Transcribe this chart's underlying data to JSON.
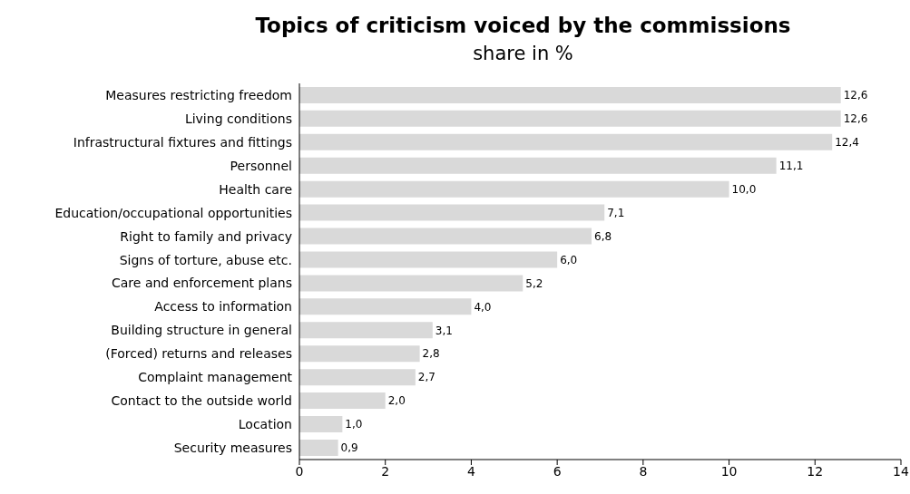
{
  "chart_data": {
    "type": "bar",
    "orientation": "horizontal",
    "title": "Topics of criticism voiced by the commissions",
    "subtitle": "share in %",
    "categories": [
      "Measures restricting freedom",
      "Living conditions",
      "Infrastructural fixtures and fittings",
      "Personnel",
      "Health care",
      "Education/occupational opportunities",
      "Right to family and privacy",
      "Signs of torture, abuse etc.",
      "Care and enforcement plans",
      "Access to information",
      "Building structure in general",
      "(Forced) returns and releases",
      "Complaint management",
      "Contact to the outside world",
      "Location",
      "Security measures"
    ],
    "values": [
      12.6,
      12.6,
      12.4,
      11.1,
      10.0,
      7.1,
      6.8,
      6.0,
      5.2,
      4.0,
      3.1,
      2.8,
      2.7,
      2.0,
      1.0,
      0.9
    ],
    "value_labels": [
      "12,6",
      "12,6",
      "12,4",
      "11,1",
      "10,0",
      "7,1",
      "6,8",
      "6,0",
      "5,2",
      "4,0",
      "3,1",
      "2,8",
      "2,7",
      "2,0",
      "1,0",
      "0,9"
    ],
    "color": "#d9d9d9",
    "xlim": [
      0,
      14
    ],
    "xticks": [
      0,
      2,
      4,
      6,
      8,
      10,
      12,
      14
    ],
    "grid": false,
    "legend": false
  }
}
